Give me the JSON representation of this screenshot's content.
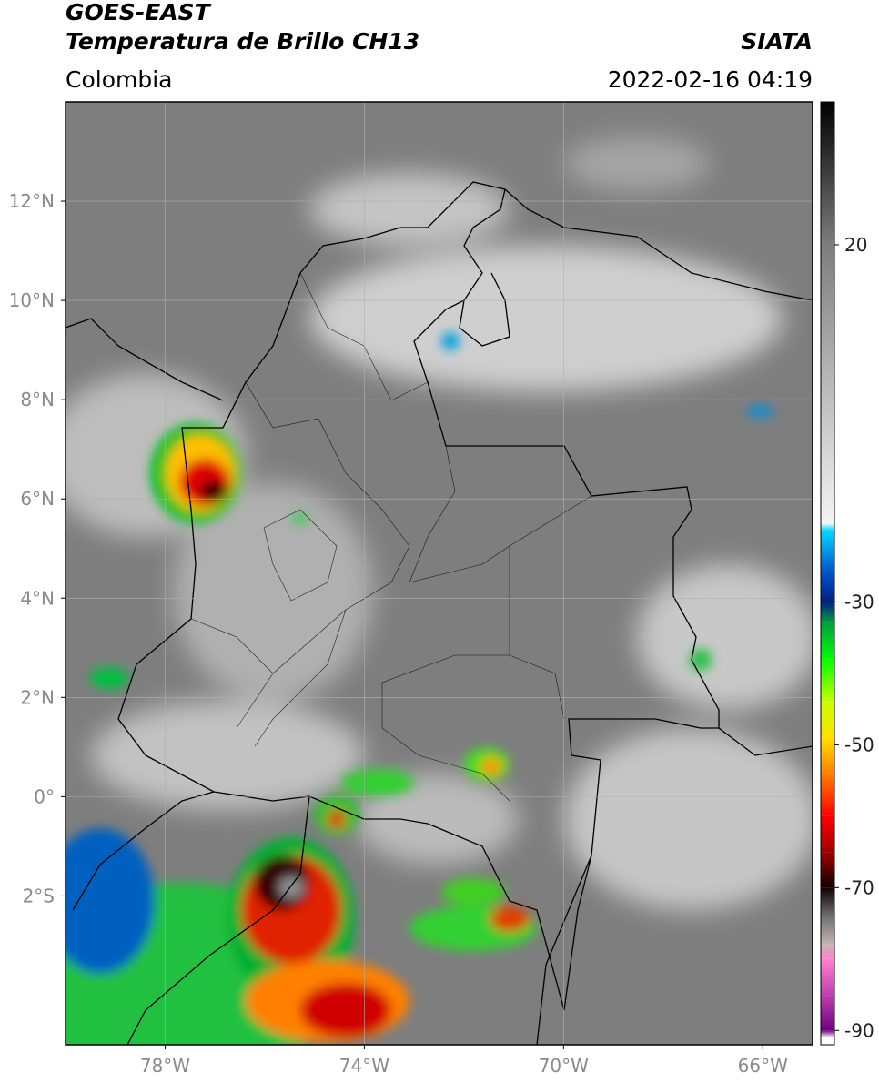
{
  "header": {
    "title": "GOES-EAST",
    "subtitle": "Temperatura de Brillo CH13",
    "source": "SIATA",
    "region": "Colombia",
    "timestamp": "2022-02-16 04:19"
  },
  "map": {
    "xlim": [
      -80,
      -65
    ],
    "ylim": [
      -5,
      14
    ],
    "grid": true,
    "xticks": [
      {
        "value": -78,
        "label": "78°W"
      },
      {
        "value": -74,
        "label": "74°W"
      },
      {
        "value": -70,
        "label": "70°W"
      },
      {
        "value": -66,
        "label": "66°W"
      }
    ],
    "yticks": [
      {
        "value": 12,
        "label": "12°N"
      },
      {
        "value": 10,
        "label": "10°N"
      },
      {
        "value": 8,
        "label": "8°N"
      },
      {
        "value": 6,
        "label": "6°N"
      },
      {
        "value": 4,
        "label": "4°N"
      },
      {
        "value": 2,
        "label": "2°N"
      },
      {
        "value": 0,
        "label": "0°"
      },
      {
        "value": -2,
        "label": "2°S"
      }
    ]
  },
  "colorbar": {
    "lim": [
      -92,
      40
    ],
    "ticks": [
      20,
      -30,
      -50,
      -70,
      -90
    ],
    "stops": [
      {
        "value": 40,
        "color": "#000000"
      },
      {
        "value": 20,
        "color": "#7d7d7d"
      },
      {
        "value": -19,
        "color": "#f4f4f4"
      },
      {
        "value": -20,
        "color": "#00d8ff"
      },
      {
        "value": -26,
        "color": "#0050c8"
      },
      {
        "value": -30,
        "color": "#002080"
      },
      {
        "value": -33,
        "color": "#00a040"
      },
      {
        "value": -38,
        "color": "#00ff00"
      },
      {
        "value": -44,
        "color": "#c8ff00"
      },
      {
        "value": -49,
        "color": "#ffe000"
      },
      {
        "value": -54,
        "color": "#ff8000"
      },
      {
        "value": -60,
        "color": "#ff0000"
      },
      {
        "value": -65,
        "color": "#a00000"
      },
      {
        "value": -70,
        "color": "#100000"
      },
      {
        "value": -74,
        "color": "#707070"
      },
      {
        "value": -78,
        "color": "#c8b4b4"
      },
      {
        "value": -80,
        "color": "#ff80d0"
      },
      {
        "value": -85,
        "color": "#c040b0"
      },
      {
        "value": -90,
        "color": "#700080"
      },
      {
        "value": -91,
        "color": "#ffffff"
      },
      {
        "value": -92,
        "color": "#ffffff"
      }
    ]
  }
}
